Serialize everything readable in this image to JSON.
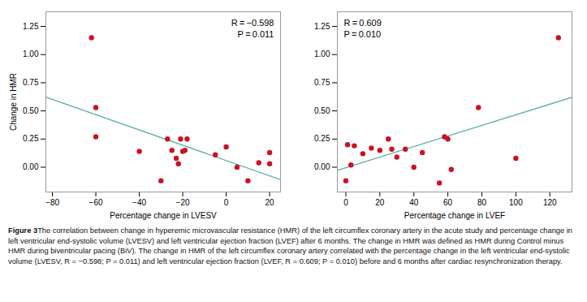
{
  "chart_data": [
    {
      "type": "scatter",
      "xlabel": "Percentage change in LVESV",
      "ylabel": "Change in HMR",
      "annotations": [
        "R = −0.598",
        "P = 0.011"
      ],
      "series": [
        {
          "type": "scatter",
          "color": "#cc1122",
          "x": [
            -62,
            -60,
            -60,
            -40,
            -30,
            -27,
            -25,
            -23,
            -22,
            -21,
            -20,
            -19,
            -18,
            -5,
            0,
            5,
            10,
            15,
            20,
            20
          ],
          "values": [
            1.15,
            0.53,
            0.27,
            0.14,
            -0.12,
            0.25,
            0.15,
            0.08,
            0.03,
            0.25,
            0.14,
            0.15,
            0.25,
            0.11,
            0.18,
            0.0,
            -0.12,
            0.04,
            0.13,
            0.03
          ]
        },
        {
          "type": "line",
          "color": "#5aada8",
          "x": [
            -83,
            25
          ],
          "values": [
            0.622,
            -0.1102
          ]
        }
      ],
      "xlim": [
        -83,
        25
      ],
      "ylim": [
        -0.22,
        1.38
      ],
      "xticks": [
        -80,
        -60,
        -40,
        -20,
        0,
        20
      ],
      "yticks": [
        {
          "value": 0.0,
          "label": "0.00"
        },
        0.25,
        {
          "value": 0.5,
          "label": "0.50"
        },
        0.75,
        {
          "value": 1.0,
          "label": "1.00"
        },
        1.25
      ],
      "grid": false
    },
    {
      "type": "scatter",
      "xlabel": "Percentage change in LVEF",
      "annotations": [
        "R = 0.609",
        "P = 0.010"
      ],
      "series": [
        {
          "type": "scatter",
          "color": "#cc1122",
          "x": [
            0,
            1,
            3,
            5,
            10,
            15,
            20,
            25,
            27,
            30,
            35,
            40,
            45,
            55,
            58,
            60,
            62,
            78,
            100,
            125
          ],
          "values": [
            -0.12,
            0.2,
            0.02,
            0.19,
            0.12,
            0.17,
            0.15,
            0.25,
            0.16,
            0.09,
            0.16,
            0.0,
            0.13,
            -0.14,
            0.27,
            0.25,
            -0.02,
            0.53,
            0.08,
            1.15
          ]
        },
        {
          "type": "line",
          "color": "#5aada8",
          "x": [
            -5,
            133
          ],
          "values": [
            -0.0283,
            0.621
          ]
        }
      ],
      "xlim": [
        -5,
        133
      ],
      "ylim": [
        -0.22,
        1.38
      ],
      "xticks": [
        0,
        20,
        40,
        60,
        80,
        100,
        120
      ],
      "yticks": [
        {
          "value": 0.0,
          "label": "0.00"
        },
        0.25,
        {
          "value": 0.5,
          "label": "0.50"
        },
        0.75,
        {
          "value": 1.0,
          "label": "1.00"
        },
        1.25
      ],
      "grid": false
    }
  ],
  "caption_bold": "Figure 3",
  "caption": "The correlation between change in hyperemic microvascular resistance (HMR) of the left circumflex coronary artery in the acute study and percentage change in left ventricular end-systolic volume (LVESV) and left ventricular ejection fraction (LVEF) after 6 months. The change in HMR was defined as HMR during Control minus HMR during biventricular pacing (BiV). The change in HMR of the left circumflex coronary artery correlated with the percentage change in the left ventricular end-systolic volume (LVESV, R = −0.598; P = 0.011) and left ventricular ejection fraction (LVEF, R = 0.609; P = 0.010) before and 6 months after cardiac resynchronization therapy."
}
